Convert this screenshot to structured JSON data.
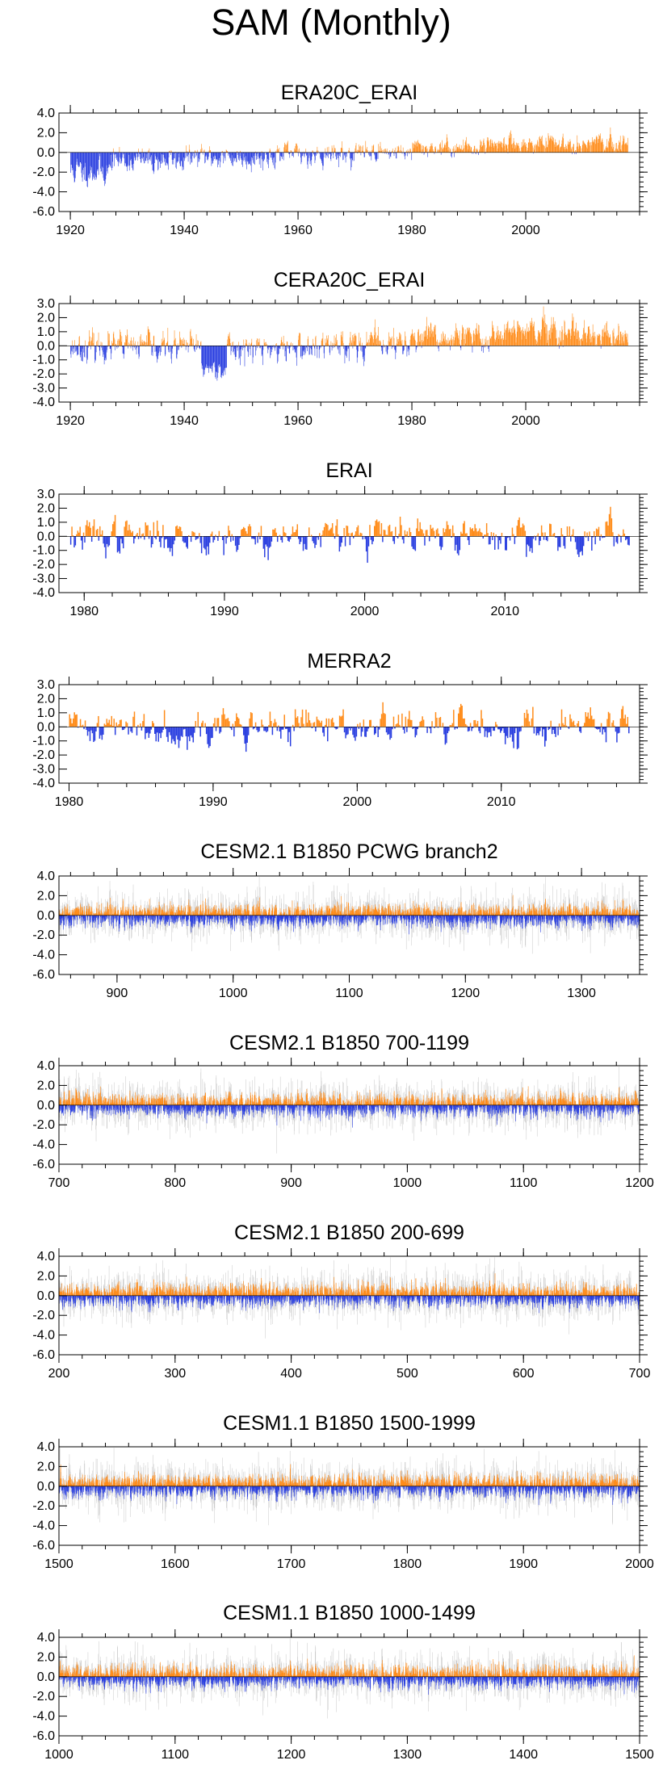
{
  "figure": {
    "title": "SAM (Monthly)"
  },
  "colors": {
    "positive": "#ff8c1a",
    "negative": "#2a3fe0",
    "ensemble_gray": "#c8c8c8",
    "axis": "#000000"
  },
  "chart_data": [
    {
      "type": "bar",
      "title": "ERA20C_ERAI",
      "xlim": [
        1918,
        2020
      ],
      "ylim": [
        -6,
        4
      ],
      "yticks": [
        4,
        2,
        0,
        -2,
        -4,
        -6
      ],
      "ytick_labels": [
        "4.0",
        "2.0",
        "0.0",
        "-2.0",
        "-4.0",
        "-6.0"
      ],
      "xticks": [
        1920,
        1940,
        1960,
        1980,
        2000
      ],
      "xtick_labels": [
        "1920",
        "1940",
        "1960",
        "1980",
        "2000"
      ],
      "x_start": 1920,
      "x_end": 2018,
      "positive_color": "#ff8c1a",
      "negative_color": "#2a3fe0",
      "gray_background": false,
      "segments": [
        {
          "x0": 1920,
          "x1": 1927,
          "level": -1.9,
          "amp": 1.3
        },
        {
          "x0": 1927,
          "x1": 1940,
          "level": -0.8,
          "amp": 1.2
        },
        {
          "x0": 1940,
          "x1": 1955,
          "level": -0.5,
          "amp": 1.1
        },
        {
          "x0": 1955,
          "x1": 1970,
          "level": -0.2,
          "amp": 1.0
        },
        {
          "x0": 1970,
          "x1": 1980,
          "level": 0.1,
          "amp": 0.9
        },
        {
          "x0": 1980,
          "x1": 1992,
          "level": 0.5,
          "amp": 0.9
        },
        {
          "x0": 1992,
          "x1": 2018,
          "level": 0.9,
          "amp": 0.8
        }
      ],
      "seed": 11
    },
    {
      "type": "bar",
      "title": "CERA20C_ERAI",
      "xlim": [
        1918,
        2020
      ],
      "ylim": [
        -4,
        3
      ],
      "yticks": [
        3,
        2,
        1,
        0,
        -1,
        -2,
        -3,
        -4
      ],
      "ytick_labels": [
        "3.0",
        "2.0",
        "1.0",
        "0.0",
        "-1.0",
        "-2.0",
        "-3.0",
        "-4.0"
      ],
      "xticks": [
        1920,
        1940,
        1960,
        1980,
        2000
      ],
      "xtick_labels": [
        "1920",
        "1940",
        "1960",
        "1980",
        "2000"
      ],
      "x_start": 1920,
      "x_end": 2018,
      "positive_color": "#ff8c1a",
      "negative_color": "#2a3fe0",
      "gray_background": false,
      "segments": [
        {
          "x0": 1920,
          "x1": 1943,
          "level": -0.1,
          "amp": 1.0
        },
        {
          "x0": 1943,
          "x1": 1947.5,
          "level": -1.6,
          "amp": 0.6
        },
        {
          "x0": 1947.5,
          "x1": 1965,
          "level": -0.2,
          "amp": 1.0
        },
        {
          "x0": 1965,
          "x1": 1980,
          "level": 0.2,
          "amp": 1.0
        },
        {
          "x0": 1980,
          "x1": 1994,
          "level": 0.5,
          "amp": 1.0
        },
        {
          "x0": 1994,
          "x1": 2005,
          "level": 1.0,
          "amp": 1.0
        },
        {
          "x0": 2005,
          "x1": 2018,
          "level": 0.6,
          "amp": 0.9
        }
      ],
      "seed": 23
    },
    {
      "type": "bar",
      "title": "ERAI",
      "xlim": [
        1978.2,
        2019.6
      ],
      "ylim": [
        -4,
        3
      ],
      "yticks": [
        3,
        2,
        1,
        0,
        -1,
        -2,
        -3,
        -4
      ],
      "ytick_labels": [
        "3.0",
        "2.0",
        "1.0",
        "0.0",
        "-1.0",
        "-2.0",
        "-3.0",
        "-4.0"
      ],
      "xticks": [
        1980,
        1990,
        2000,
        2010
      ],
      "xtick_labels": [
        "1980",
        "1990",
        "2000",
        "2010"
      ],
      "x_start": 1979,
      "x_end": 2018.9,
      "positive_color": "#ff8c1a",
      "negative_color": "#2a3fe0",
      "gray_background": false,
      "segments": [
        {
          "x0": 1979,
          "x1": 2019,
          "level": 0.0,
          "amp": 1.2
        }
      ],
      "seed": 37
    },
    {
      "type": "bar",
      "title": "MERRA2",
      "xlim": [
        1979.3,
        2019.6
      ],
      "ylim": [
        -4,
        3
      ],
      "yticks": [
        3,
        2,
        1,
        0,
        -1,
        -2,
        -3,
        -4
      ],
      "ytick_labels": [
        "3.0",
        "2.0",
        "1.0",
        "0.0",
        "-1.0",
        "-2.0",
        "-3.0",
        "-4.0"
      ],
      "xticks": [
        1980,
        1990,
        2000,
        2010
      ],
      "xtick_labels": [
        "1980",
        "1990",
        "2000",
        "2010"
      ],
      "x_start": 1980,
      "x_end": 2018.9,
      "positive_color": "#ff8c1a",
      "negative_color": "#2a3fe0",
      "gray_background": false,
      "segments": [
        {
          "x0": 1980,
          "x1": 2019,
          "level": 0.0,
          "amp": 1.2
        }
      ],
      "seed": 41
    },
    {
      "type": "bar",
      "title": "CESM2.1 B1850 PCWG branch2",
      "xlim": [
        850,
        1350
      ],
      "ylim": [
        -6,
        4
      ],
      "yticks": [
        4,
        2,
        0,
        -2,
        -4,
        -6
      ],
      "ytick_labels": [
        "4.0",
        "2.0",
        "0.0",
        "-2.0",
        "-4.0",
        "-6.0"
      ],
      "xticks": [
        900,
        1000,
        1100,
        1200,
        1300
      ],
      "xtick_labels": [
        "900",
        "1000",
        "1100",
        "1200",
        "1300"
      ],
      "x_start": 850,
      "x_end": 1350,
      "positive_color": "#ff8c1a",
      "negative_color": "#2a3fe0",
      "gray_background": true,
      "segments": [
        {
          "x0": 850,
          "x1": 1350,
          "level": 0.0,
          "amp": 1.0
        }
      ],
      "seed": 53
    },
    {
      "type": "bar",
      "title": "CESM2.1 B1850 700-1199",
      "xlim": [
        700,
        1200
      ],
      "ylim": [
        -6,
        4
      ],
      "yticks": [
        4,
        2,
        0,
        -2,
        -4,
        -6
      ],
      "ytick_labels": [
        "4.0",
        "2.0",
        "0.0",
        "-2.0",
        "-4.0",
        "-6.0"
      ],
      "xticks": [
        700,
        800,
        900,
        1000,
        1100,
        1200
      ],
      "xtick_labels": [
        "700",
        "800",
        "900",
        "1000",
        "1100",
        "1200"
      ],
      "x_start": 700,
      "x_end": 1200,
      "positive_color": "#ff8c1a",
      "negative_color": "#2a3fe0",
      "gray_background": true,
      "segments": [
        {
          "x0": 700,
          "x1": 1200,
          "level": 0.0,
          "amp": 1.0
        }
      ],
      "seed": 67
    },
    {
      "type": "bar",
      "title": "CESM2.1 B1850 200-699",
      "xlim": [
        200,
        700
      ],
      "ylim": [
        -6,
        4
      ],
      "yticks": [
        4,
        2,
        0,
        -2,
        -4,
        -6
      ],
      "ytick_labels": [
        "4.0",
        "2.0",
        "0.0",
        "-2.0",
        "-4.0",
        "-6.0"
      ],
      "xticks": [
        200,
        300,
        400,
        500,
        600,
        700
      ],
      "xtick_labels": [
        "200",
        "300",
        "400",
        "500",
        "600",
        "700"
      ],
      "x_start": 200,
      "x_end": 700,
      "positive_color": "#ff8c1a",
      "negative_color": "#2a3fe0",
      "gray_background": true,
      "segments": [
        {
          "x0": 200,
          "x1": 700,
          "level": 0.0,
          "amp": 1.0
        }
      ],
      "seed": 79
    },
    {
      "type": "bar",
      "title": "CESM1.1 B1850 1500-1999",
      "xlim": [
        1500,
        2000
      ],
      "ylim": [
        -6,
        4
      ],
      "yticks": [
        4,
        2,
        0,
        -2,
        -4,
        -6
      ],
      "ytick_labels": [
        "4.0",
        "2.0",
        "0.0",
        "-2.0",
        "-4.0",
        "-6.0"
      ],
      "xticks": [
        1500,
        1600,
        1700,
        1800,
        1900,
        2000
      ],
      "xtick_labels": [
        "1500",
        "1600",
        "1700",
        "1800",
        "1900",
        "2000"
      ],
      "x_start": 1500,
      "x_end": 2000,
      "positive_color": "#ff8c1a",
      "negative_color": "#2a3fe0",
      "gray_background": true,
      "segments": [
        {
          "x0": 1500,
          "x1": 2000,
          "level": 0.0,
          "amp": 1.0
        }
      ],
      "seed": 83
    },
    {
      "type": "bar",
      "title": "CESM1.1 B1850 1000-1499",
      "xlim": [
        1000,
        1500
      ],
      "ylim": [
        -6,
        4
      ],
      "yticks": [
        4,
        2,
        0,
        -2,
        -4,
        -6
      ],
      "ytick_labels": [
        "4.0",
        "2.0",
        "0.0",
        "-2.0",
        "-4.0",
        "-6.0"
      ],
      "xticks": [
        1000,
        1100,
        1200,
        1300,
        1400,
        1500
      ],
      "xtick_labels": [
        "1000",
        "1100",
        "1200",
        "1300",
        "1400",
        "1500"
      ],
      "x_start": 1000,
      "x_end": 1500,
      "positive_color": "#ff8c1a",
      "negative_color": "#2a3fe0",
      "gray_background": true,
      "segments": [
        {
          "x0": 1000,
          "x1": 1500,
          "level": 0.0,
          "amp": 1.0
        }
      ],
      "seed": 97
    }
  ]
}
